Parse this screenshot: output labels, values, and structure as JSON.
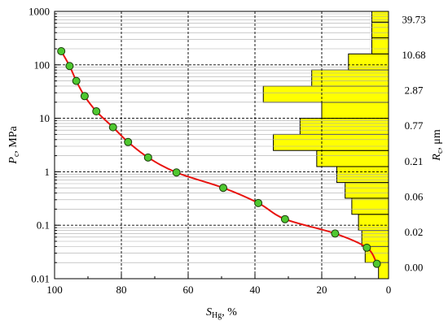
{
  "chart_data": {
    "type": "scatter",
    "xlabel": "S_Hg, %",
    "xlabel_main": "S",
    "xlabel_sub": "Hg",
    "xlabel_rest": ", %",
    "ylabel_left": "Pc, MPa",
    "ylabel_left_main": "P",
    "ylabel_left_sub": "c",
    "ylabel_left_rest": ", MPa",
    "ylabel_right": "Rc, μm",
    "ylabel_right_main": "R",
    "ylabel_right_sub": "c",
    "ylabel_right_rest": ", μm",
    "x_axis": {
      "min": 0,
      "max": 100,
      "reversed": true,
      "ticks": [
        "100",
        "80",
        "60",
        "40",
        "20",
        "0"
      ]
    },
    "y_axis": {
      "scale": "log",
      "min": 0.01,
      "max": 1000,
      "ticks": [
        "0.01",
        "0.1",
        "1",
        "10",
        "100",
        "1000"
      ]
    },
    "right_ticks": [
      "39.73",
      "10.68",
      "2.87",
      "0.77",
      "0.21",
      "0.06",
      "0.02",
      "0.00"
    ],
    "grid": true,
    "colors": {
      "curve": "#e8130f",
      "marker_fill": "#4fc830",
      "marker_edge": "#1a3a0a",
      "bar_fill": "#ffff00",
      "bar_edge": "#000000"
    },
    "series": [
      {
        "type": "line+markers",
        "x": [
          98,
          95.5,
          93.5,
          91,
          87.5,
          82.5,
          78,
          72,
          63.5,
          49.5,
          39,
          31,
          16,
          6.5,
          3.5
        ],
        "y": [
          180,
          95,
          50,
          26,
          13.5,
          6.8,
          3.6,
          1.85,
          0.97,
          0.5,
          0.26,
          0.13,
          0.07,
          0.038,
          0.019
        ]
      },
      {
        "type": "barh",
        "bins_lower_pressure": [
          0.01,
          0.02,
          0.04,
          0.08,
          0.16,
          0.32,
          0.63,
          1.25,
          2.5,
          5,
          10,
          20,
          40,
          80,
          160,
          320,
          630
        ],
        "bins_upper_pressure": [
          0.02,
          0.04,
          0.08,
          0.16,
          0.32,
          0.63,
          1.25,
          2.5,
          5,
          10,
          20,
          40,
          80,
          160,
          320,
          630,
          1000
        ],
        "values": [
          3,
          7,
          8,
          9,
          11,
          13,
          15.5,
          21.5,
          34.5,
          26.5,
          20,
          37.5,
          23,
          12,
          5,
          5,
          5
        ]
      }
    ]
  }
}
